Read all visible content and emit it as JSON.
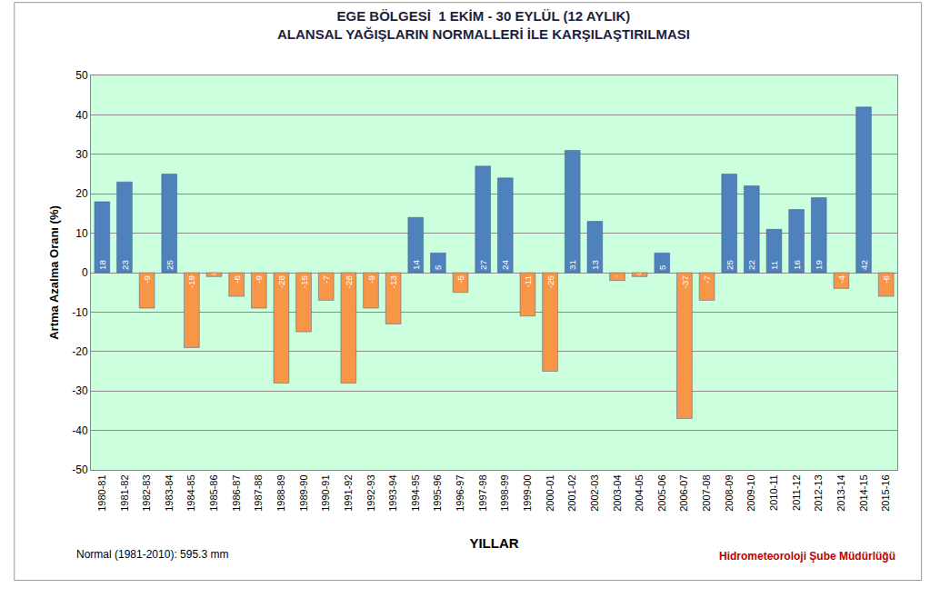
{
  "chart_data": {
    "type": "bar",
    "title": "EGE BÖLGESİ  1 EKİM - 30 EYLÜL (12 AYLIK)",
    "subtitle": "ALANSAL YAĞIŞLARIN NORMALLERİ İLE KARŞILAŞTIRILMASI",
    "x_label": "YILLAR",
    "y_label": "Artma Azalma Oranı (%)",
    "annotations": [
      "Normal (1981-2010): 595.3 mm",
      "Hidrometeoroloji Şube Müdürlüğü"
    ],
    "categories": [
      "1980-81",
      "1981-82",
      "1982-83",
      "1983-84",
      "1984-85",
      "1985-86",
      "1986-87",
      "1987-88",
      "1988-89",
      "1989-90",
      "1990-91",
      "1991-92",
      "1992-93",
      "1993-94",
      "1994-95",
      "1995-96",
      "1996-97",
      "1997-98",
      "1998-99",
      "1999-00",
      "2000-01",
      "2001-02",
      "2002-03",
      "2003-04",
      "2004-05",
      "2005-06",
      "2006-07",
      "2007-08",
      "2008-09",
      "2009-10",
      "2010-11",
      "2011-12",
      "2012-13",
      "2013-14",
      "2014-15",
      "2015-16"
    ],
    "values": [
      18,
      23,
      -9,
      25,
      -19,
      -1,
      -6,
      -9,
      -28,
      -15,
      -7,
      -28,
      -9,
      -13,
      14,
      5,
      -5,
      27,
      24,
      -11,
      -25,
      31,
      13,
      -2,
      -1,
      5,
      -37,
      -7,
      25,
      22,
      11,
      16,
      19,
      -4,
      42,
      -6
    ],
    "colors": [
      "#4f81bd",
      "#4f81bd",
      "#f79646",
      "#4f81bd",
      "#f79646",
      "#f79646",
      "#f79646",
      "#f79646",
      "#f79646",
      "#f79646",
      "#f79646",
      "#f79646",
      "#f79646",
      "#f79646",
      "#4f81bd",
      "#4f81bd",
      "#f79646",
      "#4f81bd",
      "#4f81bd",
      "#f79646",
      "#f79646",
      "#4f81bd",
      "#4f81bd",
      "#f79646",
      "#f79646",
      "#4f81bd",
      "#f79646",
      "#f79646",
      "#4f81bd",
      "#4f81bd",
      "#4f81bd",
      "#4f81bd",
      "#4f81bd",
      "#f79646",
      "#4f81bd",
      "#f79646"
    ],
    "ylim": [
      -50,
      50
    ],
    "yticks": [
      -50,
      -40,
      -30,
      -20,
      -10,
      0,
      10,
      20,
      30,
      40,
      50
    ],
    "grid": true,
    "data_labels": true
  }
}
